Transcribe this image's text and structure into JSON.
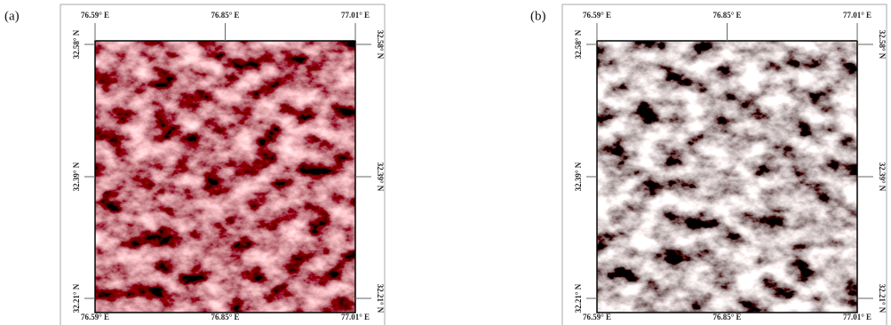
{
  "panels": [
    {
      "label": "(a)",
      "top_labels": [
        "76.59° E",
        "76.85° E",
        "77.01° E"
      ],
      "bottom_labels": [
        "76.59° E",
        "76.85° E",
        "77.01° E"
      ],
      "left_labels": [
        "32.58° N",
        "32.39° N",
        "32.21° N"
      ],
      "right_labels": [
        "32.58° N",
        "32.39° N",
        "32.21° N"
      ]
    },
    {
      "label": "(b)",
      "top_labels": [
        "76.59° E",
        "76.85° E",
        "77.01° E"
      ],
      "bottom_labels": [
        "76.59° E",
        "76.85° E",
        "77.01° E"
      ],
      "left_labels": [
        "32.58° N",
        "32.39° N",
        "32.21° N"
      ],
      "right_labels": [
        "32.58° N",
        "32.39° N",
        "32.21° N"
      ]
    }
  ]
}
